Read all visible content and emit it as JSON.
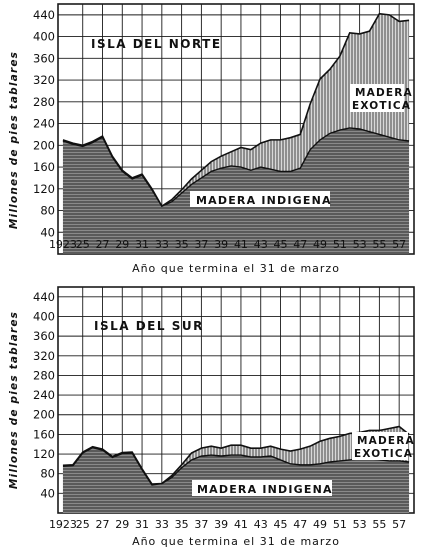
{
  "colors": {
    "ink": "#1a1a1a",
    "indigenous_fill": "#6e6e6e",
    "exotic_fill": "#a8a8a8",
    "paper": "#ffffff"
  },
  "chart_data": [
    {
      "type": "area",
      "stacked": true,
      "panel_label": "ISLA DEL NORTE",
      "ylabel": "Millones de pies tablares",
      "xlabel": "Año que termina el 31 de marzo",
      "ylim": [
        0,
        460
      ],
      "yticks": [
        40,
        80,
        120,
        160,
        200,
        240,
        280,
        320,
        360,
        400,
        440
      ],
      "xticks": [
        "1923",
        "25",
        "27",
        "29",
        "31",
        "33",
        "35",
        "37",
        "39",
        "41",
        "43",
        "45",
        "47",
        "49",
        "51",
        "53",
        "55",
        "57"
      ],
      "grid": true,
      "x": [
        1923,
        1924,
        1925,
        1926,
        1927,
        1928,
        1929,
        1930,
        1931,
        1932,
        1933,
        1934,
        1935,
        1936,
        1937,
        1938,
        1939,
        1940,
        1941,
        1942,
        1943,
        1944,
        1945,
        1946,
        1947,
        1948,
        1949,
        1950,
        1951,
        1952,
        1953,
        1954,
        1955,
        1956,
        1957,
        1958
      ],
      "series": [
        {
          "name": "MADERA INDIGENA",
          "values": [
            208,
            202,
            198,
            205,
            215,
            178,
            152,
            138,
            145,
            118,
            88,
            96,
            112,
            128,
            140,
            152,
            158,
            162,
            160,
            154,
            160,
            156,
            152,
            152,
            158,
            192,
            210,
            222,
            228,
            232,
            230,
            225,
            220,
            215,
            210,
            208
          ]
        },
        {
          "name": "MADERA EXOTICA",
          "values": [
            2,
            2,
            2,
            2,
            2,
            2,
            2,
            2,
            2,
            2,
            0,
            4,
            6,
            10,
            14,
            18,
            22,
            26,
            36,
            38,
            44,
            54,
            58,
            62,
            62,
            84,
            112,
            118,
            136,
            175,
            175,
            185,
            222,
            225,
            218,
            222
          ]
        }
      ],
      "labels": {
        "inner": "MADERA INDIGENA",
        "outer_line1": "MADERA",
        "outer_line2": "EXOTICA"
      }
    },
    {
      "type": "area",
      "stacked": true,
      "panel_label": "ISLA DEL SUR",
      "ylabel": "Millones de pies tablares",
      "xlabel": "Año que termina el 31 de marzo",
      "ylim": [
        0,
        460
      ],
      "yticks": [
        40,
        80,
        120,
        160,
        200,
        240,
        280,
        320,
        360,
        400,
        440
      ],
      "xticks": [
        "1923",
        "25",
        "27",
        "29",
        "31",
        "33",
        "35",
        "37",
        "39",
        "41",
        "43",
        "45",
        "47",
        "49",
        "51",
        "53",
        "55",
        "57"
      ],
      "grid": true,
      "x": [
        1923,
        1924,
        1925,
        1926,
        1927,
        1928,
        1929,
        1930,
        1931,
        1932,
        1933,
        1934,
        1935,
        1936,
        1937,
        1938,
        1939,
        1940,
        1941,
        1942,
        1943,
        1944,
        1945,
        1946,
        1947,
        1948,
        1949,
        1950,
        1951,
        1952,
        1953,
        1954,
        1955,
        1956,
        1957,
        1958
      ],
      "series": [
        {
          "name": "MADERA INDIGENA",
          "values": [
            95,
            96,
            122,
            133,
            128,
            113,
            121,
            122,
            88,
            57,
            60,
            72,
            92,
            108,
            116,
            118,
            116,
            118,
            118,
            114,
            114,
            116,
            108,
            100,
            98,
            98,
            100,
            104,
            106,
            108,
            110,
            110,
            108,
            106,
            106,
            104
          ]
        },
        {
          "name": "MADERA EXOTICA",
          "values": [
            2,
            2,
            2,
            2,
            2,
            2,
            2,
            2,
            2,
            2,
            0,
            4,
            6,
            14,
            16,
            18,
            16,
            20,
            20,
            18,
            18,
            20,
            22,
            26,
            32,
            38,
            46,
            48,
            50,
            54,
            54,
            58,
            60,
            66,
            70,
            56
          ]
        }
      ],
      "labels": {
        "inner": "MADERA INDIGENA",
        "outer_line1": "MADERA",
        "outer_line2": "EXOTICA"
      }
    }
  ]
}
